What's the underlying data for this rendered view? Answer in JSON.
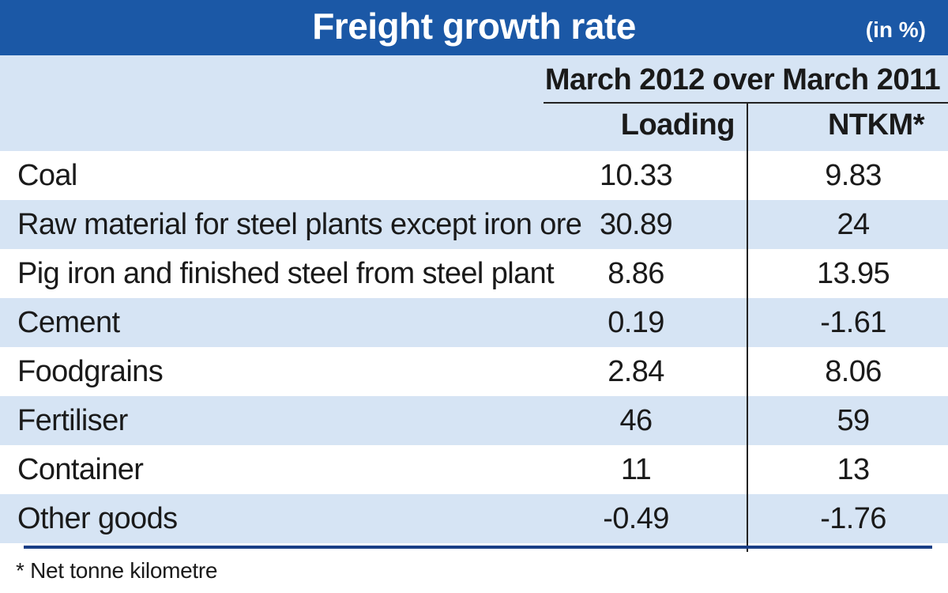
{
  "header": {
    "title": "Freight growth rate",
    "unit": "(in %)"
  },
  "colors": {
    "title_bar": "#1b58a6",
    "shaded_row": "#d6e4f4",
    "rule": "#1b3f86"
  },
  "chart_data": {
    "type": "table",
    "title": "Freight growth rate",
    "unit": "(in %)",
    "period": "March 2012 over March 2011",
    "columns": [
      "Loading",
      "NTKM*"
    ],
    "rows": [
      {
        "commodity": "Coal",
        "loading": "10.33",
        "ntkm": "9.83"
      },
      {
        "commodity": "Raw material for steel plants except iron ore",
        "loading": "30.89",
        "ntkm": "24"
      },
      {
        "commodity": "Pig iron and finished steel from steel plant",
        "loading": "8.86",
        "ntkm": "13.95"
      },
      {
        "commodity": "Cement",
        "loading": "0.19",
        "ntkm": "-1.61"
      },
      {
        "commodity": "Foodgrains",
        "loading": "2.84",
        "ntkm": "8.06"
      },
      {
        "commodity": "Fertiliser",
        "loading": "46",
        "ntkm": "59"
      },
      {
        "commodity": "Container",
        "loading": "11",
        "ntkm": "13"
      },
      {
        "commodity": "Other goods",
        "loading": "-0.49",
        "ntkm": "-1.76"
      }
    ],
    "footnote": "* Net tonne kilometre"
  }
}
